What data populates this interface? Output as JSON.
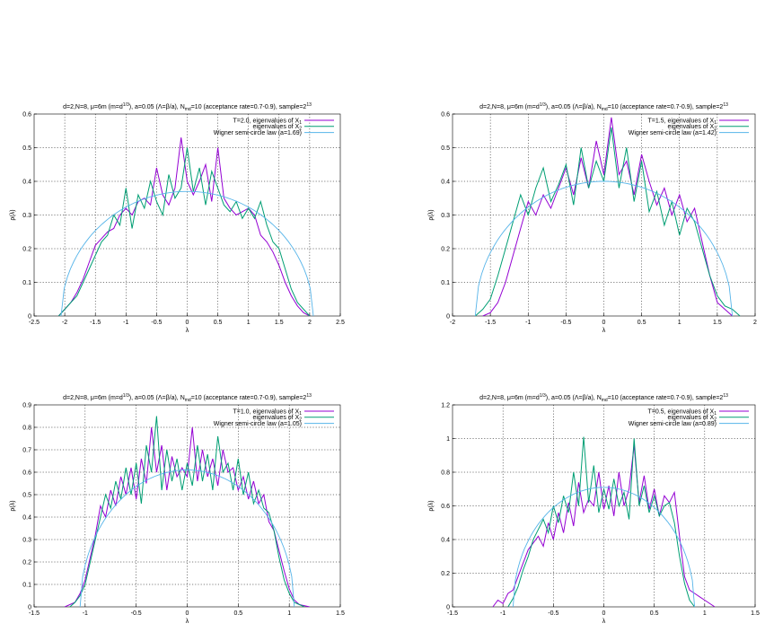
{
  "colors": {
    "series_x1": "#9400d3",
    "series_x2": "#009e73",
    "wigner": "#56b4e9"
  },
  "chart_data": [
    {
      "type": "line",
      "title_prefix": "d=2,N=8, μ=6m (m=d",
      "title_exp1": "1/3",
      "title_mid": "), a=0.05 (Λ=β/a), N",
      "title_sub": "md",
      "title_mid2": "=10 (acceptance rate=0.7-0.9),  sample=2",
      "title_exp2": "13",
      "xlabel": "λ",
      "ylabel": "ρ(λ)",
      "xlim": [
        -2.5,
        2.5
      ],
      "ylim": [
        0,
        0.6
      ],
      "xticks": [
        "-2.5",
        "-2",
        "-1.5",
        "-1",
        "-0.5",
        "0",
        "0.5",
        "1",
        "1.5",
        "2",
        "2.5"
      ],
      "yticks": [
        "0",
        "0.1",
        "0.2",
        "0.3",
        "0.4",
        "0.5",
        "0.6"
      ],
      "grid": true,
      "legend": "top-right",
      "series": [
        {
          "name": "T=2.0, eigenvalues of X",
          "sub": "1",
          "role": "x1",
          "x": [
            -2.1,
            -2.0,
            -1.9,
            -1.8,
            -1.7,
            -1.6,
            -1.5,
            -1.4,
            -1.3,
            -1.2,
            -1.1,
            -1.0,
            -0.9,
            -0.8,
            -0.7,
            -0.6,
            -0.5,
            -0.4,
            -0.3,
            -0.2,
            -0.1,
            0.0,
            0.1,
            0.2,
            0.3,
            0.4,
            0.5,
            0.6,
            0.7,
            0.8,
            0.9,
            1.0,
            1.1,
            1.2,
            1.3,
            1.4,
            1.5,
            1.6,
            1.7,
            1.8,
            1.9,
            2.0
          ],
          "y": [
            0.0,
            0.02,
            0.04,
            0.07,
            0.11,
            0.16,
            0.21,
            0.23,
            0.25,
            0.26,
            0.3,
            0.32,
            0.3,
            0.34,
            0.35,
            0.33,
            0.44,
            0.36,
            0.33,
            0.38,
            0.53,
            0.4,
            0.36,
            0.4,
            0.45,
            0.34,
            0.5,
            0.35,
            0.32,
            0.3,
            0.31,
            0.32,
            0.3,
            0.24,
            0.22,
            0.19,
            0.15,
            0.1,
            0.06,
            0.03,
            0.01,
            0.0
          ]
        },
        {
          "name": "eigenvalues of X",
          "sub": "2",
          "role": "x2",
          "x": [
            -2.1,
            -2.0,
            -1.9,
            -1.8,
            -1.7,
            -1.6,
            -1.5,
            -1.4,
            -1.3,
            -1.2,
            -1.1,
            -1.0,
            -0.9,
            -0.8,
            -0.7,
            -0.6,
            -0.5,
            -0.4,
            -0.3,
            -0.2,
            -0.1,
            0.0,
            0.1,
            0.2,
            0.3,
            0.4,
            0.5,
            0.6,
            0.7,
            0.8,
            0.9,
            1.0,
            1.1,
            1.2,
            1.3,
            1.4,
            1.5,
            1.6,
            1.7,
            1.8,
            1.9,
            2.0
          ],
          "y": [
            0.0,
            0.02,
            0.04,
            0.06,
            0.1,
            0.14,
            0.18,
            0.22,
            0.24,
            0.3,
            0.27,
            0.38,
            0.26,
            0.36,
            0.32,
            0.4,
            0.34,
            0.3,
            0.42,
            0.35,
            0.38,
            0.5,
            0.37,
            0.44,
            0.33,
            0.43,
            0.38,
            0.33,
            0.31,
            0.34,
            0.29,
            0.32,
            0.29,
            0.34,
            0.27,
            0.22,
            0.2,
            0.14,
            0.08,
            0.04,
            0.02,
            0.0
          ]
        },
        {
          "name": "Wigner semi-circle law (a=1.69)",
          "role": "wigner",
          "radius": 2.06,
          "peak": 0.37
        }
      ]
    },
    {
      "type": "line",
      "title_prefix": "d=2,N=8, μ=6m (m=d",
      "title_exp1": "1/3",
      "title_mid": "), a=0.05 (Λ=β/a), N",
      "title_sub": "md",
      "title_mid2": "=10 (acceptance rate=0.7-0.9),  sample=2",
      "title_exp2": "13",
      "xlabel": "λ",
      "ylabel": "ρ(λ)",
      "xlim": [
        -2,
        2
      ],
      "ylim": [
        0,
        0.6
      ],
      "xticks": [
        "-2",
        "-1.5",
        "-1",
        "-0.5",
        "0",
        "0.5",
        "1",
        "1.5",
        "2"
      ],
      "yticks": [
        "0",
        "0.1",
        "0.2",
        "0.3",
        "0.4",
        "0.5",
        "0.6"
      ],
      "grid": true,
      "legend": "top-right",
      "series": [
        {
          "name": "T=1.5, eigenvalues of X",
          "sub": "1",
          "role": "x1",
          "x": [
            -1.6,
            -1.5,
            -1.4,
            -1.3,
            -1.2,
            -1.1,
            -1.0,
            -0.9,
            -0.8,
            -0.7,
            -0.6,
            -0.5,
            -0.4,
            -0.3,
            -0.2,
            -0.1,
            0.0,
            0.1,
            0.2,
            0.3,
            0.4,
            0.5,
            0.6,
            0.7,
            0.8,
            0.9,
            1.0,
            1.1,
            1.2,
            1.3,
            1.4,
            1.5,
            1.6,
            1.7
          ],
          "y": [
            0.0,
            0.01,
            0.04,
            0.1,
            0.18,
            0.26,
            0.34,
            0.3,
            0.36,
            0.32,
            0.38,
            0.44,
            0.36,
            0.47,
            0.38,
            0.52,
            0.42,
            0.59,
            0.42,
            0.46,
            0.36,
            0.48,
            0.4,
            0.33,
            0.38,
            0.3,
            0.36,
            0.28,
            0.32,
            0.22,
            0.12,
            0.04,
            0.02,
            0.0
          ]
        },
        {
          "name": "eigenvalues of X",
          "sub": "2",
          "role": "x2",
          "x": [
            -1.7,
            -1.6,
            -1.5,
            -1.4,
            -1.3,
            -1.2,
            -1.1,
            -1.0,
            -0.9,
            -0.8,
            -0.7,
            -0.6,
            -0.5,
            -0.4,
            -0.3,
            -0.2,
            -0.1,
            0.0,
            0.1,
            0.2,
            0.3,
            0.4,
            0.5,
            0.6,
            0.7,
            0.8,
            0.9,
            1.0,
            1.1,
            1.2,
            1.3,
            1.4,
            1.5,
            1.6,
            1.7,
            1.8
          ],
          "y": [
            0.0,
            0.02,
            0.05,
            0.12,
            0.2,
            0.28,
            0.36,
            0.3,
            0.38,
            0.44,
            0.34,
            0.39,
            0.45,
            0.33,
            0.5,
            0.38,
            0.46,
            0.4,
            0.56,
            0.38,
            0.5,
            0.34,
            0.46,
            0.31,
            0.37,
            0.27,
            0.34,
            0.24,
            0.32,
            0.28,
            0.2,
            0.12,
            0.06,
            0.03,
            0.02,
            0.0
          ]
        },
        {
          "name": "Wigner semi-circle law (a=1.42)",
          "role": "wigner",
          "radius": 1.7,
          "peak": 0.4
        }
      ]
    },
    {
      "type": "line",
      "title_prefix": "d=2,N=8, μ=6m (m=d",
      "title_exp1": "1/3",
      "title_mid": "), a=0.05 (Λ=β/a), N",
      "title_sub": "md",
      "title_mid2": "=10 (acceptance rate=0.7-0.9),  sample=2",
      "title_exp2": "13",
      "xlabel": "λ",
      "ylabel": "ρ(λ)",
      "xlim": [
        -1.5,
        1.5
      ],
      "ylim": [
        0,
        0.9
      ],
      "xticks": [
        "-1.5",
        "-1",
        "-0.5",
        "0",
        "0.5",
        "1",
        "1.5"
      ],
      "yticks": [
        "0",
        "0.1",
        "0.2",
        "0.3",
        "0.4",
        "0.5",
        "0.6",
        "0.7",
        "0.8",
        "0.9"
      ],
      "grid": true,
      "legend": "top-right",
      "series": [
        {
          "name": "T=1.0, eigenvalues of X",
          "sub": "1",
          "role": "x1",
          "x": [
            -1.2,
            -1.1,
            -1.05,
            -1.0,
            -0.95,
            -0.9,
            -0.85,
            -0.8,
            -0.75,
            -0.7,
            -0.65,
            -0.6,
            -0.55,
            -0.5,
            -0.45,
            -0.4,
            -0.35,
            -0.3,
            -0.25,
            -0.2,
            -0.15,
            -0.1,
            -0.05,
            0.0,
            0.05,
            0.1,
            0.15,
            0.2,
            0.25,
            0.3,
            0.35,
            0.4,
            0.45,
            0.5,
            0.55,
            0.6,
            0.65,
            0.7,
            0.75,
            0.8,
            0.85,
            0.9,
            0.95,
            1.0,
            1.05,
            1.1,
            1.2
          ],
          "y": [
            0.0,
            0.02,
            0.06,
            0.12,
            0.22,
            0.32,
            0.45,
            0.4,
            0.52,
            0.45,
            0.58,
            0.5,
            0.62,
            0.48,
            0.66,
            0.55,
            0.8,
            0.6,
            0.72,
            0.52,
            0.67,
            0.58,
            0.62,
            0.58,
            0.8,
            0.56,
            0.7,
            0.58,
            0.66,
            0.54,
            0.7,
            0.6,
            0.62,
            0.52,
            0.58,
            0.48,
            0.56,
            0.46,
            0.5,
            0.38,
            0.34,
            0.25,
            0.16,
            0.08,
            0.03,
            0.01,
            0.0
          ]
        },
        {
          "name": "eigenvalues of X",
          "sub": "2",
          "role": "x2",
          "x": [
            -1.15,
            -1.1,
            -1.05,
            -1.0,
            -0.95,
            -0.9,
            -0.85,
            -0.8,
            -0.75,
            -0.7,
            -0.65,
            -0.6,
            -0.55,
            -0.5,
            -0.45,
            -0.4,
            -0.35,
            -0.3,
            -0.25,
            -0.2,
            -0.15,
            -0.1,
            -0.05,
            0.0,
            0.05,
            0.1,
            0.15,
            0.2,
            0.25,
            0.3,
            0.35,
            0.4,
            0.45,
            0.5,
            0.55,
            0.6,
            0.65,
            0.7,
            0.75,
            0.8,
            0.85,
            0.9,
            0.95,
            1.0,
            1.05,
            1.1,
            1.15
          ],
          "y": [
            0.0,
            0.02,
            0.05,
            0.1,
            0.2,
            0.3,
            0.4,
            0.5,
            0.44,
            0.56,
            0.48,
            0.62,
            0.5,
            0.64,
            0.46,
            0.72,
            0.6,
            0.85,
            0.52,
            0.7,
            0.56,
            0.66,
            0.52,
            0.64,
            0.54,
            0.72,
            0.56,
            0.68,
            0.52,
            0.76,
            0.6,
            0.64,
            0.52,
            0.66,
            0.5,
            0.6,
            0.46,
            0.52,
            0.44,
            0.42,
            0.34,
            0.22,
            0.12,
            0.06,
            0.02,
            0.01,
            0.0
          ]
        },
        {
          "name": "Wigner semi-circle law (a=1.05)",
          "role": "wigner",
          "radius": 1.05,
          "peak": 0.61
        }
      ]
    },
    {
      "type": "line",
      "title_prefix": "d=2,N=8, μ=6m (m=d",
      "title_exp1": "1/3",
      "title_mid": "), a=0.05 (Λ=β/a), N",
      "title_sub": "md",
      "title_mid2": "=10 (acceptance rate=0.7-0.9),  sample=2",
      "title_exp2": "13",
      "xlabel": "λ",
      "ylabel": "ρ(λ)",
      "xlim": [
        -1.5,
        1.5
      ],
      "ylim": [
        0,
        1.2
      ],
      "xticks": [
        "-1.5",
        "-1",
        "-0.5",
        "0",
        "0.5",
        "1",
        "1.5"
      ],
      "yticks": [
        "0",
        "0.2",
        "0.4",
        "0.6",
        "0.8",
        "1",
        "1.2"
      ],
      "grid": true,
      "legend": "top-right",
      "series": [
        {
          "name": "T=0.5, eigenvalues of X",
          "sub": "1",
          "role": "x1",
          "x": [
            -1.1,
            -1.05,
            -1.0,
            -0.95,
            -0.9,
            -0.85,
            -0.8,
            -0.75,
            -0.7,
            -0.65,
            -0.6,
            -0.55,
            -0.5,
            -0.45,
            -0.4,
            -0.35,
            -0.3,
            -0.25,
            -0.2,
            -0.15,
            -0.1,
            -0.05,
            0.0,
            0.05,
            0.1,
            0.15,
            0.2,
            0.25,
            0.3,
            0.35,
            0.4,
            0.45,
            0.5,
            0.55,
            0.6,
            0.65,
            0.7,
            0.75,
            0.8,
            0.85,
            0.9,
            0.95,
            1.0,
            1.1
          ],
          "y": [
            0.0,
            0.04,
            0.02,
            0.08,
            0.1,
            0.18,
            0.26,
            0.34,
            0.38,
            0.42,
            0.36,
            0.5,
            0.4,
            0.56,
            0.44,
            0.62,
            0.48,
            0.74,
            0.56,
            0.64,
            0.6,
            0.8,
            0.58,
            0.72,
            0.54,
            0.8,
            0.6,
            0.7,
            0.96,
            0.62,
            0.78,
            0.58,
            0.7,
            0.54,
            0.66,
            0.62,
            0.68,
            0.42,
            0.18,
            0.1,
            0.08,
            0.06,
            0.04,
            0.0
          ]
        },
        {
          "name": "eigenvalues of X",
          "sub": "2",
          "role": "x2",
          "x": [
            -0.95,
            -0.9,
            -0.85,
            -0.8,
            -0.75,
            -0.7,
            -0.65,
            -0.6,
            -0.55,
            -0.5,
            -0.45,
            -0.4,
            -0.35,
            -0.3,
            -0.25,
            -0.2,
            -0.15,
            -0.1,
            -0.05,
            0.0,
            0.05,
            0.1,
            0.15,
            0.2,
            0.25,
            0.3,
            0.35,
            0.4,
            0.45,
            0.5,
            0.55,
            0.6,
            0.65,
            0.7,
            0.75,
            0.8,
            0.85,
            0.9
          ],
          "y": [
            0.0,
            0.05,
            0.12,
            0.22,
            0.3,
            0.4,
            0.46,
            0.52,
            0.44,
            0.6,
            0.5,
            0.66,
            0.56,
            0.8,
            0.6,
            1.01,
            0.62,
            0.84,
            0.56,
            0.7,
            0.58,
            0.76,
            0.6,
            0.68,
            0.52,
            1.0,
            0.6,
            0.72,
            0.56,
            0.66,
            0.54,
            0.6,
            0.62,
            0.5,
            0.3,
            0.14,
            0.04,
            0.0
          ]
        },
        {
          "name": "Wigner semi-circle law (a=0.89)",
          "role": "wigner",
          "radius": 0.9,
          "peak": 0.71
        }
      ]
    }
  ]
}
